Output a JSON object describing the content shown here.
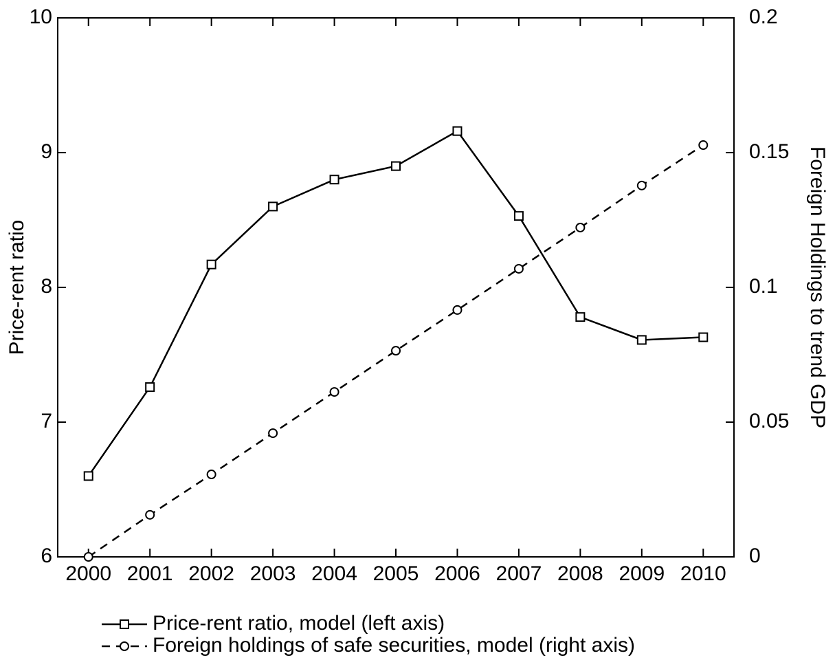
{
  "chart_data": {
    "type": "line",
    "x": [
      2000,
      2001,
      2002,
      2003,
      2004,
      2005,
      2006,
      2007,
      2008,
      2009,
      2010
    ],
    "xlim": [
      1999.5,
      2010.5
    ],
    "xticks": [
      2000,
      2001,
      2002,
      2003,
      2004,
      2005,
      2006,
      2007,
      2008,
      2009,
      2010
    ],
    "ylabel": "Price-rent ratio",
    "y2label": "Foreign Holdings to trend GDP",
    "ylim": [
      6,
      10
    ],
    "yticks": [
      6,
      7,
      8,
      9,
      10
    ],
    "y2lim": [
      0,
      0.2
    ],
    "y2ticks": [
      0,
      0.05,
      0.1,
      0.15,
      0.2
    ],
    "series": [
      {
        "name": "Price-rent ratio, model (left axis)",
        "color": "#000000",
        "dash": "solid",
        "marker": "square",
        "values": [
          6.6,
          7.26,
          8.17,
          8.6,
          8.8,
          8.9,
          9.16,
          8.53,
          7.78,
          7.61,
          7.63
        ]
      },
      {
        "name": "Foreign holdings of safe securities, model (right axis)",
        "color": "#000000",
        "dash": "dashed",
        "marker": "circle",
        "axis": "y2",
        "values": [
          0,
          0.0156,
          0.0306,
          0.0459,
          0.0612,
          0.0765,
          0.0916,
          0.1069,
          0.1222,
          0.1378,
          0.1528
        ]
      }
    ]
  }
}
